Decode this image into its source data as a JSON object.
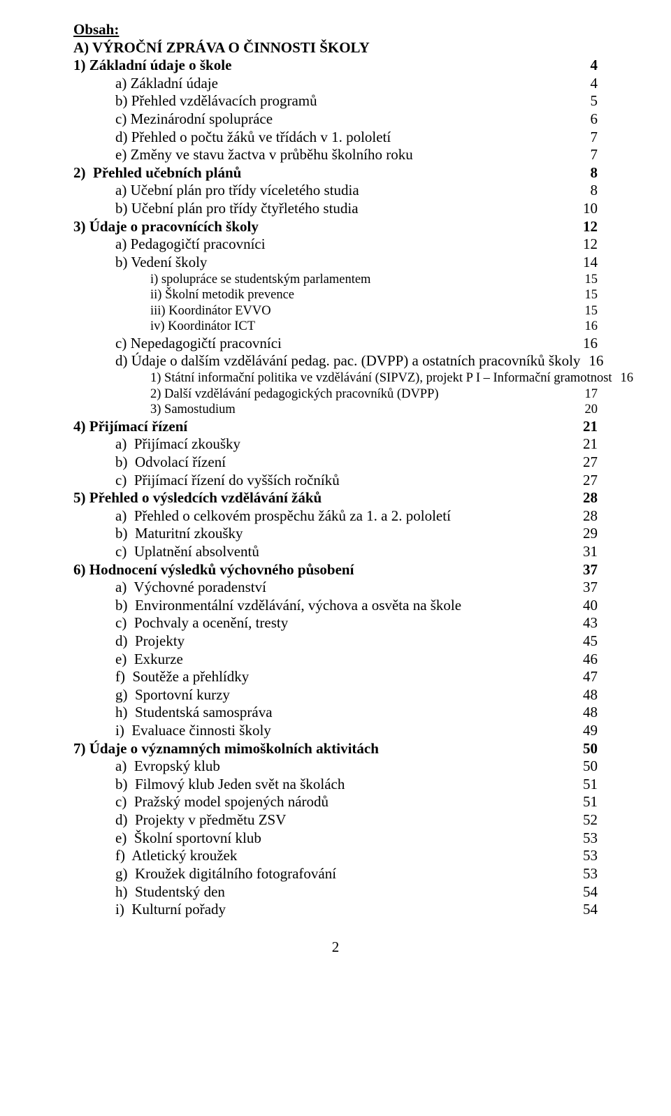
{
  "title": "Obsah:",
  "sectionA": "A) VÝROČNÍ ZPRÁVA O ČINNOSTI ŠKOLY",
  "toc": [
    {
      "label": "1) Základní údaje o škole",
      "page": "4",
      "bold": true,
      "indent": 0
    },
    {
      "label": "a) Základní údaje",
      "page": "4",
      "indent": 1
    },
    {
      "label": "b) Přehled vzdělávacích programů",
      "page": "5",
      "indent": 1
    },
    {
      "label": "c) Mezinárodní spolupráce",
      "page": "6",
      "indent": 1
    },
    {
      "label": "d) Přehled o počtu žáků ve třídách v 1. pololetí",
      "page": "7",
      "indent": 1
    },
    {
      "label": "e) Změny ve stavu žactva v průběhu školního roku",
      "page": "7",
      "indent": 1
    },
    {
      "label": "2)  Přehled učebních plánů",
      "page": "8",
      "bold": true,
      "indent": 0
    },
    {
      "label": "a) Učební plán pro třídy víceletého studia",
      "page": "8",
      "indent": 1
    },
    {
      "label": "b) Učební plán pro třídy čtyřletého studia",
      "page": "10",
      "indent": 1
    },
    {
      "label": "3) Údaje o pracovnících školy",
      "page": "12",
      "bold": true,
      "indent": 0
    },
    {
      "label": "a) Pedagogičtí pracovníci",
      "page": "12",
      "indent": 1
    },
    {
      "label": "b) Vedení školy",
      "page": "14",
      "indent": 1
    },
    {
      "label": "i) spolupráce se studentským parlamentem",
      "page": "15",
      "indent": 2,
      "small": true
    },
    {
      "label": "ii) Školní metodik prevence",
      "page": "15",
      "indent": 2,
      "small": true
    },
    {
      "label": "iii) Koordinátor EVVO",
      "page": "15",
      "indent": 2,
      "small": true
    },
    {
      "label": "iv) Koordinátor ICT",
      "page": "16",
      "indent": 2,
      "small": true
    },
    {
      "label": "c) Nepedagogičtí pracovníci",
      "page": "16",
      "indent": 1
    },
    {
      "label": "d) Údaje o dalším vzdělávání pedag. pac. (DVPP) a ostatních pracovníků školy",
      "page": "16",
      "indent": 1
    },
    {
      "label": "1) Státní informační politika ve vzdělávání (SIPVZ), projekt P I – Informační gramotnost",
      "page": "16",
      "indent": 2,
      "small": true
    },
    {
      "label": "2) Další vzdělávání pedagogických pracovníků (DVPP)",
      "page": "17",
      "indent": 2,
      "small": true
    },
    {
      "label": "3) Samostudium",
      "page": "20",
      "indent": 2,
      "small": true
    },
    {
      "label": "4) Přijímací řízení",
      "page": "21",
      "bold": true,
      "indent": 0
    },
    {
      "label": "a)  Přijímací zkoušky",
      "page": "21",
      "indent": 1
    },
    {
      "label": "b)  Odvolací řízení",
      "page": "27",
      "indent": 1
    },
    {
      "label": "c)  Přijímací řízení do vyšších ročníků",
      "page": "27",
      "indent": 1
    },
    {
      "label": "5) Přehled o výsledcích vzdělávání žáků",
      "page": "28",
      "bold": true,
      "indent": 0
    },
    {
      "label": "a)  Přehled o celkovém prospěchu žáků za 1. a 2. pololetí",
      "page": "28",
      "indent": 1
    },
    {
      "label": "b)  Maturitní zkoušky",
      "page": "29",
      "indent": 1
    },
    {
      "label": "c)  Uplatnění absolventů",
      "page": "31",
      "indent": 1
    },
    {
      "label": "6) Hodnocení výsledků výchovného působení",
      "page": "37",
      "bold": true,
      "indent": 0
    },
    {
      "label": "a)  Výchovné poradenství",
      "page": "37",
      "indent": 1
    },
    {
      "label": "b)  Environmentální vzdělávání, výchova a osvěta na škole",
      "page": "40",
      "indent": 1
    },
    {
      "label": "c)  Pochvaly a ocenění, tresty",
      "page": "43",
      "indent": 1
    },
    {
      "label": "d)  Projekty",
      "page": "45",
      "indent": 1
    },
    {
      "label": "e)  Exkurze",
      "page": "46",
      "indent": 1
    },
    {
      "label": "f)  Soutěže a přehlídky",
      "page": "47",
      "indent": 1
    },
    {
      "label": "g)  Sportovní kurzy",
      "page": "48",
      "indent": 1
    },
    {
      "label": "h)  Studentská samospráva",
      "page": "48",
      "indent": 1
    },
    {
      "label": "i)  Evaluace činnosti školy",
      "page": "49",
      "indent": 1
    },
    {
      "label": "7) Údaje o významných mimoškolních aktivitách",
      "page": "50",
      "bold": true,
      "indent": 0
    },
    {
      "label": "a)  Evropský klub",
      "page": "50",
      "indent": 1
    },
    {
      "label": "b)  Filmový klub Jeden svět na školách",
      "page": "51",
      "indent": 1
    },
    {
      "label": "c)  Pražský model spojených národů",
      "page": "51",
      "indent": 1
    },
    {
      "label": "d)  Projekty v předmětu ZSV",
      "page": "52",
      "indent": 1
    },
    {
      "label": "e)  Školní sportovní klub",
      "page": "53",
      "indent": 1
    },
    {
      "label": "f)  Atletický kroužek",
      "page": "53",
      "indent": 1
    },
    {
      "label": "g)  Kroužek digitálního fotografování",
      "page": "53",
      "indent": 1
    },
    {
      "label": "h)  Studentský den",
      "page": "54",
      "indent": 1
    },
    {
      "label": "i)  Kulturní pořady",
      "page": "54",
      "indent": 1
    }
  ],
  "pageNumber": "2"
}
